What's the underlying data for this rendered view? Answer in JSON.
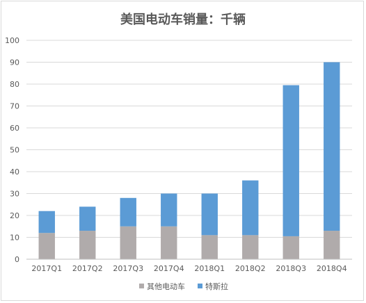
{
  "chart_data": {
    "type": "bar",
    "stacked": true,
    "title": "美国电动车销量：千辆",
    "xlabel": "",
    "ylabel": "",
    "categories": [
      "2017Q1",
      "2017Q2",
      "2017Q3",
      "2017Q4",
      "2018Q1",
      "2018Q2",
      "2018Q3",
      "2018Q4"
    ],
    "series": [
      {
        "name": "其他电动车",
        "color": "#b0abab",
        "values": [
          12,
          13,
          15,
          15,
          11,
          11,
          10.5,
          13
        ]
      },
      {
        "name": "特斯拉",
        "color": "#5b9bd5",
        "values": [
          10,
          11,
          13,
          15,
          19,
          25,
          69,
          77
        ]
      }
    ],
    "ylim": [
      0,
      100
    ],
    "yticks": [
      0,
      10,
      20,
      30,
      40,
      50,
      60,
      70,
      80,
      90,
      100
    ],
    "grid": true,
    "legend": "bottom"
  }
}
